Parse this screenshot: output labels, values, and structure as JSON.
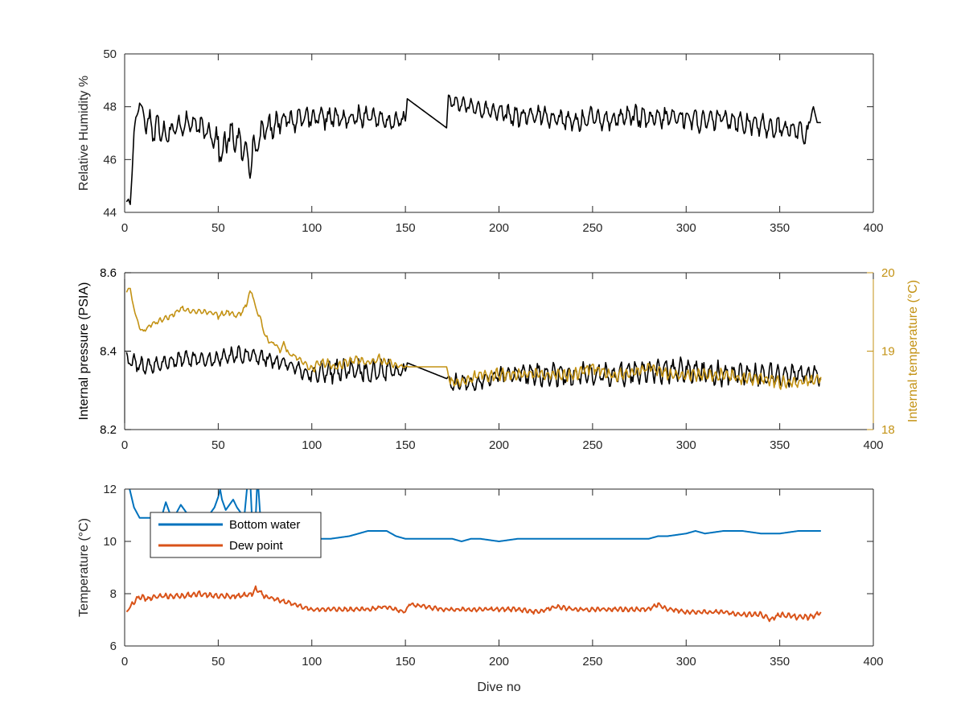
{
  "chart_data": [
    {
      "type": "line",
      "title": "",
      "xlabel": "",
      "ylabel": "Relative Humidity %",
      "xlim": [
        0,
        400
      ],
      "ylim": [
        44,
        50
      ],
      "xticks": [
        0,
        50,
        100,
        150,
        200,
        250,
        300,
        350,
        400
      ],
      "yticks": [
        44,
        46,
        48,
        50
      ],
      "grid": false,
      "series": [
        {
          "color": "#000000",
          "x": [
            1,
            2,
            3,
            4,
            5,
            6,
            8,
            10,
            12,
            14,
            16,
            18,
            20,
            25,
            30,
            35,
            40,
            45,
            50,
            52,
            55,
            60,
            63,
            65,
            67,
            70,
            75,
            80,
            85,
            90,
            95,
            100,
            110,
            120,
            130,
            140,
            150,
            151,
            172,
            173,
            180,
            190,
            200,
            210,
            220,
            230,
            240,
            250,
            260,
            270,
            280,
            290,
            300,
            310,
            320,
            330,
            340,
            350,
            360,
            365,
            367,
            368,
            370,
            372
          ],
          "y": [
            44.4,
            44.5,
            44.3,
            45.5,
            47.0,
            47.6,
            48.1,
            47.8,
            47.2,
            47.6,
            46.8,
            47.5,
            47.0,
            47.1,
            47.3,
            47.4,
            47.2,
            47.1,
            46.6,
            46.1,
            46.9,
            46.8,
            46.4,
            46.2,
            46.0,
            46.5,
            47.2,
            47.3,
            47.6,
            47.4,
            47.7,
            47.5,
            47.6,
            47.5,
            47.7,
            47.4,
            47.5,
            48.3,
            47.2,
            48.2,
            48.1,
            47.9,
            47.8,
            47.6,
            47.7,
            47.6,
            47.4,
            47.6,
            47.5,
            47.7,
            47.5,
            47.6,
            47.6,
            47.4,
            47.6,
            47.4,
            47.3,
            47.2,
            47.1,
            46.9,
            47.8,
            48.0,
            47.4,
            47.4
          ],
          "noise": [
            0.0,
            0.0,
            0.0,
            0.0,
            0.1,
            0.1,
            0.1,
            0.2,
            0.5,
            0.5,
            0.5,
            0.5,
            0.5,
            0.4,
            0.4,
            0.4,
            0.4,
            0.4,
            0.6,
            0.6,
            0.6,
            0.5,
            0.6,
            0.7,
            0.6,
            0.5,
            0.5,
            0.5,
            0.4,
            0.4,
            0.4,
            0.4,
            0.4,
            0.4,
            0.4,
            0.3,
            0.3,
            0.0,
            0.0,
            0.3,
            0.3,
            0.3,
            0.3,
            0.4,
            0.4,
            0.4,
            0.4,
            0.4,
            0.4,
            0.4,
            0.4,
            0.4,
            0.4,
            0.4,
            0.4,
            0.4,
            0.4,
            0.4,
            0.4,
            0.4,
            0.1,
            0.0,
            0.0,
            0.0
          ],
          "osc_period": 4
        }
      ]
    },
    {
      "type": "line",
      "title": "",
      "xlabel": "",
      "ylabel": "Internal pressure (PSIA)",
      "y2label": "Internal temperature (°C)",
      "xlim": [
        0,
        400
      ],
      "ylim": [
        8.2,
        8.6
      ],
      "y2lim": [
        18,
        20
      ],
      "xticks": [
        0,
        50,
        100,
        150,
        200,
        250,
        300,
        350,
        400
      ],
      "yticks": [
        8.2,
        8.4,
        8.6
      ],
      "y2ticks": [
        18,
        19,
        20
      ],
      "grid": false,
      "series": [
        {
          "axis": "left",
          "color": "#000000",
          "x": [
            1,
            5,
            10,
            20,
            30,
            40,
            50,
            60,
            68,
            75,
            85,
            95,
            100,
            110,
            120,
            130,
            140,
            150,
            151,
            172,
            174,
            180,
            190,
            200,
            220,
            240,
            260,
            280,
            300,
            320,
            340,
            360,
            372
          ],
          "y": [
            8.38,
            8.37,
            8.36,
            8.37,
            8.38,
            8.38,
            8.38,
            8.39,
            8.39,
            8.38,
            8.37,
            8.35,
            8.34,
            8.35,
            8.35,
            8.35,
            8.35,
            8.35,
            8.37,
            8.33,
            8.32,
            8.32,
            8.32,
            8.34,
            8.34,
            8.34,
            8.34,
            8.35,
            8.35,
            8.34,
            8.34,
            8.34,
            8.34
          ],
          "noise": [
            0.02,
            0.02,
            0.02,
            0.02,
            0.02,
            0.02,
            0.02,
            0.02,
            0.02,
            0.02,
            0.02,
            0.02,
            0.02,
            0.03,
            0.03,
            0.03,
            0.03,
            0.02,
            0.0,
            0.0,
            0.02,
            0.02,
            0.02,
            0.02,
            0.03,
            0.03,
            0.03,
            0.03,
            0.03,
            0.03,
            0.03,
            0.03,
            0.03
          ],
          "osc_period": 4
        },
        {
          "axis": "right",
          "color": "#C39214",
          "step": true,
          "x": [
            1,
            2,
            3,
            4,
            6,
            8,
            10,
            12,
            15,
            20,
            25,
            30,
            35,
            40,
            45,
            50,
            55,
            60,
            63,
            65,
            67,
            68,
            70,
            72,
            75,
            78,
            80,
            83,
            85,
            88,
            90,
            93,
            96,
            98,
            100,
            103,
            108,
            112,
            118,
            124,
            130,
            136,
            142,
            148,
            152,
            160,
            168,
            172,
            174,
            180,
            190,
            200,
            210,
            220,
            230,
            240,
            250,
            260,
            270,
            280,
            290,
            300,
            310,
            320,
            330,
            340,
            350,
            360,
            372
          ],
          "y": [
            19.75,
            19.8,
            19.8,
            19.65,
            19.45,
            19.3,
            19.25,
            19.3,
            19.35,
            19.4,
            19.45,
            19.55,
            19.5,
            19.5,
            19.5,
            19.45,
            19.5,
            19.45,
            19.5,
            19.6,
            19.75,
            19.75,
            19.55,
            19.45,
            19.2,
            19.1,
            19.1,
            19.0,
            19.1,
            18.95,
            18.95,
            18.9,
            18.85,
            18.8,
            18.75,
            18.85,
            18.85,
            18.8,
            18.85,
            18.9,
            18.85,
            18.9,
            18.85,
            18.8,
            18.8,
            18.8,
            18.8,
            18.8,
            18.6,
            18.6,
            18.7,
            18.7,
            18.7,
            18.7,
            18.7,
            18.7,
            18.8,
            18.7,
            18.7,
            18.8,
            18.7,
            18.7,
            18.7,
            18.7,
            18.65,
            18.65,
            18.6,
            18.6,
            18.65
          ],
          "noise": [
            0.0,
            0.0,
            0.0,
            0.0,
            0.02,
            0.02,
            0.02,
            0.02,
            0.03,
            0.04,
            0.03,
            0.03,
            0.03,
            0.03,
            0.03,
            0.04,
            0.04,
            0.04,
            0.03,
            0.03,
            0.02,
            0.02,
            0.03,
            0.03,
            0.03,
            0.03,
            0.03,
            0.03,
            0.03,
            0.03,
            0.03,
            0.03,
            0.03,
            0.03,
            0.06,
            0.06,
            0.06,
            0.06,
            0.06,
            0.06,
            0.06,
            0.06,
            0.05,
            0.04,
            0.0,
            0.0,
            0.0,
            0.0,
            0.06,
            0.08,
            0.08,
            0.08,
            0.08,
            0.08,
            0.08,
            0.08,
            0.08,
            0.08,
            0.08,
            0.08,
            0.08,
            0.08,
            0.08,
            0.08,
            0.08,
            0.08,
            0.08,
            0.08,
            0.06
          ],
          "osc_period": 3
        }
      ]
    },
    {
      "type": "line",
      "title": "",
      "xlabel": "Dive no",
      "ylabel": "Temperature (°C)",
      "xlim": [
        0,
        400
      ],
      "ylim": [
        6,
        12
      ],
      "xticks": [
        0,
        50,
        100,
        150,
        200,
        250,
        300,
        350,
        400
      ],
      "yticks": [
        6,
        8,
        10,
        12
      ],
      "grid": false,
      "legend": "top-left",
      "series": [
        {
          "name": "Bottom water",
          "color": "#0072BD",
          "x": [
            1,
            3,
            5,
            8,
            12,
            16,
            20,
            22,
            24,
            27,
            30,
            32,
            36,
            40,
            44,
            48,
            50,
            51,
            52,
            54,
            56,
            58,
            60,
            62,
            64,
            66,
            67,
            68,
            70,
            71,
            73,
            78,
            85,
            95,
            100,
            110,
            120,
            125,
            130,
            135,
            140,
            145,
            150,
            160,
            170,
            175,
            180,
            185,
            190,
            200,
            210,
            220,
            230,
            240,
            250,
            260,
            270,
            280,
            285,
            290,
            300,
            305,
            310,
            320,
            330,
            340,
            350,
            360,
            370,
            372
          ],
          "y": [
            12.5,
            11.9,
            11.3,
            10.9,
            10.9,
            10.9,
            11.0,
            11.5,
            11.1,
            11.0,
            11.4,
            11.2,
            10.8,
            10.8,
            10.9,
            11.3,
            11.7,
            12.0,
            11.6,
            11.2,
            11.4,
            11.6,
            11.3,
            11.1,
            11.0,
            12.5,
            12.5,
            10.9,
            10.9,
            12.5,
            10.4,
            10.3,
            10.2,
            10.2,
            10.1,
            10.1,
            10.2,
            10.3,
            10.4,
            10.4,
            10.4,
            10.2,
            10.1,
            10.1,
            10.1,
            10.1,
            10.0,
            10.1,
            10.1,
            10.0,
            10.1,
            10.1,
            10.1,
            10.1,
            10.1,
            10.1,
            10.1,
            10.1,
            10.2,
            10.2,
            10.3,
            10.4,
            10.3,
            10.4,
            10.4,
            10.3,
            10.3,
            10.4,
            10.4,
            10.4
          ],
          "noise": [
            0.0,
            0.0,
            0.0,
            0.0,
            0.0,
            0.0,
            0.0,
            0.0,
            0.0,
            0.0,
            0.0,
            0.0,
            0.0,
            0.0,
            0.0,
            0.0,
            0.0,
            0.0,
            0.0,
            0.0,
            0.0,
            0.0,
            0.0,
            0.0,
            0.0,
            0.0,
            0.0,
            0.0,
            0.0,
            0.0,
            0.0,
            0.0,
            0.0,
            0.0,
            0.0,
            0.0,
            0.0,
            0.0,
            0.0,
            0.0,
            0.0,
            0.0,
            0.0,
            0.0,
            0.0,
            0.0,
            0.0,
            0.0,
            0.0,
            0.0,
            0.0,
            0.0,
            0.0,
            0.0,
            0.0,
            0.0,
            0.0,
            0.0,
            0.0,
            0.0,
            0.0,
            0.0,
            0.0,
            0.0,
            0.0,
            0.0,
            0.0,
            0.0,
            0.0,
            0.0
          ],
          "osc_period": 2
        },
        {
          "name": "Dew point",
          "color": "#D95319",
          "x": [
            1,
            4,
            8,
            12,
            20,
            30,
            40,
            50,
            60,
            68,
            70,
            75,
            80,
            90,
            100,
            110,
            120,
            130,
            140,
            150,
            152,
            160,
            170,
            180,
            190,
            200,
            210,
            220,
            230,
            240,
            250,
            260,
            270,
            280,
            285,
            290,
            300,
            310,
            320,
            330,
            340,
            345,
            350,
            360,
            366,
            370,
            372
          ],
          "y": [
            7.3,
            7.6,
            7.9,
            7.8,
            7.9,
            7.9,
            8.0,
            7.9,
            7.9,
            8.0,
            8.2,
            7.9,
            7.8,
            7.6,
            7.4,
            7.4,
            7.4,
            7.4,
            7.5,
            7.3,
            7.6,
            7.5,
            7.4,
            7.4,
            7.4,
            7.4,
            7.4,
            7.3,
            7.5,
            7.4,
            7.4,
            7.4,
            7.4,
            7.4,
            7.6,
            7.4,
            7.3,
            7.3,
            7.3,
            7.2,
            7.2,
            7.0,
            7.2,
            7.1,
            7.1,
            7.2,
            7.3
          ],
          "noise": [
            0.03,
            0.08,
            0.1,
            0.1,
            0.1,
            0.1,
            0.1,
            0.1,
            0.1,
            0.1,
            0.1,
            0.1,
            0.08,
            0.08,
            0.08,
            0.08,
            0.08,
            0.08,
            0.08,
            0.08,
            0.05,
            0.08,
            0.08,
            0.08,
            0.08,
            0.08,
            0.08,
            0.08,
            0.08,
            0.08,
            0.08,
            0.08,
            0.08,
            0.08,
            0.08,
            0.08,
            0.08,
            0.08,
            0.08,
            0.08,
            0.1,
            0.1,
            0.1,
            0.1,
            0.1,
            0.1,
            0.05
          ],
          "osc_period": 3
        }
      ]
    }
  ]
}
